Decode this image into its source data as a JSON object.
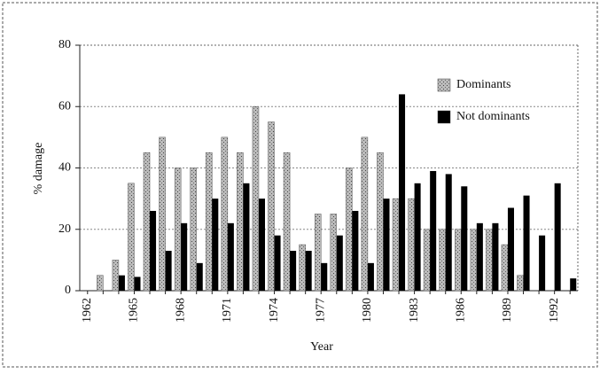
{
  "chart_data": {
    "type": "bar",
    "x_label": "Year",
    "y_label": "% damage",
    "categories": [
      "1962",
      null,
      null,
      "1965",
      null,
      null,
      "1968",
      null,
      null,
      "1971",
      null,
      null,
      "1974",
      null,
      null,
      "1977",
      null,
      null,
      "1980",
      null,
      null,
      "1983",
      null,
      null,
      "1986",
      null,
      null,
      "1989",
      null,
      null,
      "1992",
      null
    ],
    "series": [
      {
        "name": "Dominants",
        "color": "#9a9a9a",
        "values": [
          null,
          5,
          10,
          35,
          45,
          50,
          40,
          40,
          45,
          50,
          45,
          60,
          55,
          45,
          15,
          25,
          25,
          40,
          50,
          45,
          30,
          30,
          20,
          20,
          20,
          20,
          20,
          15,
          5,
          null,
          null,
          null
        ]
      },
      {
        "name": "Not dominants",
        "color": "#000000",
        "values": [
          null,
          null,
          5,
          4.5,
          26,
          13,
          22,
          9,
          30,
          22,
          35,
          30,
          18,
          13,
          13,
          9,
          18,
          26,
          9,
          30,
          64,
          35,
          39,
          38,
          34,
          22,
          22,
          27,
          31,
          18,
          35,
          4
        ]
      }
    ],
    "ylim": [
      0,
      80
    ],
    "yticks": [
      0,
      20,
      40,
      60,
      80
    ],
    "grid": true,
    "legend": "upper right"
  }
}
